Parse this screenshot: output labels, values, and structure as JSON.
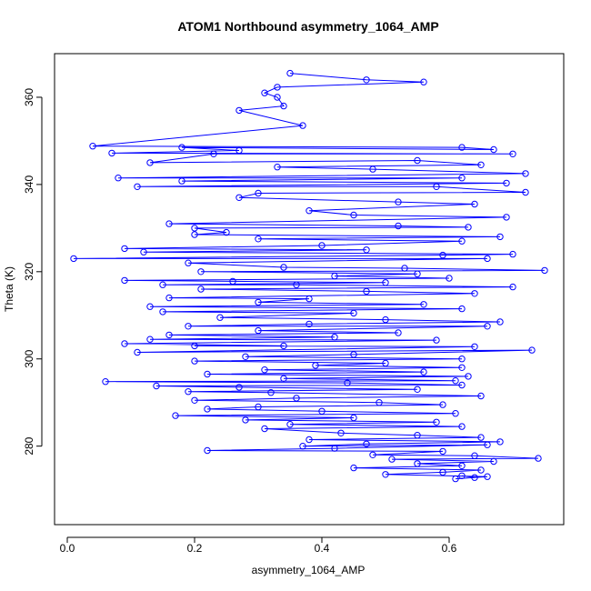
{
  "chart_data": {
    "type": "line",
    "title": "ATOM1 Northbound asymmetry_1064_AMP",
    "xlabel": "asymmetry_1064_AMP",
    "ylabel": "Theta (K)",
    "xlim": [
      -0.02,
      0.78
    ],
    "ylim": [
      262,
      370
    ],
    "xticks": [
      0.0,
      0.2,
      0.4,
      0.6
    ],
    "xtick_labels": [
      "0.0",
      "0.2",
      "0.4",
      "0.6"
    ],
    "yticks": [
      280,
      300,
      320,
      340,
      360
    ],
    "ytick_labels": [
      "280",
      "300",
      "320",
      "340",
      "360"
    ],
    "grid": false,
    "marker": "open-circle",
    "series": [
      {
        "color": "#0000ff",
        "points": [
          [
            0.35,
            365.5
          ],
          [
            0.47,
            364.0
          ],
          [
            0.56,
            363.5
          ],
          [
            0.33,
            362.3
          ],
          [
            0.31,
            361.0
          ],
          [
            0.33,
            360.0
          ],
          [
            0.34,
            358.0
          ],
          [
            0.27,
            357.0
          ],
          [
            0.37,
            353.5
          ],
          [
            0.04,
            348.8
          ],
          [
            0.62,
            348.5
          ],
          [
            0.67,
            348.0
          ],
          [
            0.18,
            348.5
          ],
          [
            0.27,
            347.8
          ],
          [
            0.07,
            347.2
          ],
          [
            0.7,
            347.0
          ],
          [
            0.23,
            347.0
          ],
          [
            0.13,
            345.0
          ],
          [
            0.55,
            345.5
          ],
          [
            0.65,
            344.5
          ],
          [
            0.33,
            344.0
          ],
          [
            0.48,
            343.5
          ],
          [
            0.72,
            342.5
          ],
          [
            0.08,
            341.5
          ],
          [
            0.62,
            341.5
          ],
          [
            0.18,
            340.8
          ],
          [
            0.69,
            340.3
          ],
          [
            0.11,
            339.5
          ],
          [
            0.58,
            339.5
          ],
          [
            0.72,
            338.2
          ],
          [
            0.3,
            338.0
          ],
          [
            0.27,
            337.0
          ],
          [
            0.52,
            336.0
          ],
          [
            0.64,
            335.5
          ],
          [
            0.38,
            334.0
          ],
          [
            0.45,
            333.0
          ],
          [
            0.69,
            332.5
          ],
          [
            0.16,
            331.0
          ],
          [
            0.52,
            330.5
          ],
          [
            0.63,
            330.2
          ],
          [
            0.2,
            330.0
          ],
          [
            0.25,
            329.0
          ],
          [
            0.2,
            328.5
          ],
          [
            0.68,
            328.0
          ],
          [
            0.3,
            327.5
          ],
          [
            0.62,
            327.0
          ],
          [
            0.4,
            326.0
          ],
          [
            0.09,
            325.3
          ],
          [
            0.47,
            325.0
          ],
          [
            0.12,
            324.5
          ],
          [
            0.7,
            324.0
          ],
          [
            0.59,
            323.8
          ],
          [
            0.01,
            323.0
          ],
          [
            0.66,
            323.0
          ],
          [
            0.19,
            322.0
          ],
          [
            0.34,
            321.0
          ],
          [
            0.53,
            320.8
          ],
          [
            0.75,
            320.3
          ],
          [
            0.21,
            320.0
          ],
          [
            0.55,
            319.5
          ],
          [
            0.42,
            319.0
          ],
          [
            0.6,
            318.5
          ],
          [
            0.09,
            318.0
          ],
          [
            0.26,
            317.8
          ],
          [
            0.5,
            317.5
          ],
          [
            0.15,
            317.0
          ],
          [
            0.36,
            317.0
          ],
          [
            0.7,
            316.5
          ],
          [
            0.21,
            316.0
          ],
          [
            0.47,
            315.5
          ],
          [
            0.64,
            315.0
          ],
          [
            0.16,
            314.0
          ],
          [
            0.38,
            313.8
          ],
          [
            0.3,
            313.0
          ],
          [
            0.56,
            312.5
          ],
          [
            0.13,
            312.0
          ],
          [
            0.62,
            311.5
          ],
          [
            0.15,
            310.8
          ],
          [
            0.45,
            310.5
          ],
          [
            0.24,
            309.5
          ],
          [
            0.5,
            309.0
          ],
          [
            0.68,
            308.5
          ],
          [
            0.38,
            308.0
          ],
          [
            0.19,
            307.5
          ],
          [
            0.66,
            307.5
          ],
          [
            0.3,
            306.5
          ],
          [
            0.52,
            306.0
          ],
          [
            0.16,
            305.5
          ],
          [
            0.42,
            305.0
          ],
          [
            0.13,
            304.5
          ],
          [
            0.58,
            304.3
          ],
          [
            0.09,
            303.5
          ],
          [
            0.34,
            303.0
          ],
          [
            0.2,
            303.0
          ],
          [
            0.64,
            302.8
          ],
          [
            0.11,
            301.5
          ],
          [
            0.73,
            302.0
          ],
          [
            0.45,
            301.0
          ],
          [
            0.28,
            300.5
          ],
          [
            0.62,
            300.0
          ],
          [
            0.2,
            299.5
          ],
          [
            0.5,
            299.0
          ],
          [
            0.39,
            298.5
          ],
          [
            0.62,
            298.0
          ],
          [
            0.31,
            297.5
          ],
          [
            0.56,
            297.0
          ],
          [
            0.22,
            296.5
          ],
          [
            0.63,
            296.0
          ],
          [
            0.34,
            295.5
          ],
          [
            0.61,
            295.0
          ],
          [
            0.06,
            294.8
          ],
          [
            0.44,
            294.5
          ],
          [
            0.62,
            294.0
          ],
          [
            0.14,
            293.8
          ],
          [
            0.27,
            293.5
          ],
          [
            0.55,
            293.0
          ],
          [
            0.19,
            292.5
          ],
          [
            0.32,
            292.3
          ],
          [
            0.65,
            291.5
          ],
          [
            0.36,
            291.0
          ],
          [
            0.2,
            290.5
          ],
          [
            0.49,
            290.0
          ],
          [
            0.59,
            289.5
          ],
          [
            0.3,
            289.0
          ],
          [
            0.22,
            288.5
          ],
          [
            0.4,
            288.0
          ],
          [
            0.61,
            287.5
          ],
          [
            0.17,
            287.0
          ],
          [
            0.45,
            286.5
          ],
          [
            0.28,
            286.0
          ],
          [
            0.58,
            285.5
          ],
          [
            0.35,
            285.0
          ],
          [
            0.62,
            284.5
          ],
          [
            0.31,
            284.0
          ],
          [
            0.43,
            283.0
          ],
          [
            0.55,
            282.5
          ],
          [
            0.65,
            282.0
          ],
          [
            0.38,
            281.5
          ],
          [
            0.68,
            281.0
          ],
          [
            0.47,
            280.5
          ],
          [
            0.37,
            280.0
          ],
          [
            0.66,
            280.3
          ],
          [
            0.42,
            279.5
          ],
          [
            0.22,
            279.0
          ],
          [
            0.59,
            278.8
          ],
          [
            0.48,
            278.0
          ],
          [
            0.64,
            277.8
          ],
          [
            0.74,
            277.2
          ],
          [
            0.51,
            277.0
          ],
          [
            0.67,
            276.5
          ],
          [
            0.55,
            276.0
          ],
          [
            0.62,
            275.5
          ],
          [
            0.45,
            275.0
          ],
          [
            0.65,
            274.5
          ],
          [
            0.59,
            274.0
          ],
          [
            0.5,
            273.5
          ],
          [
            0.66,
            273.0
          ],
          [
            0.61,
            272.5
          ],
          [
            0.64,
            272.8
          ],
          [
            0.62,
            273.2
          ]
        ]
      }
    ]
  }
}
